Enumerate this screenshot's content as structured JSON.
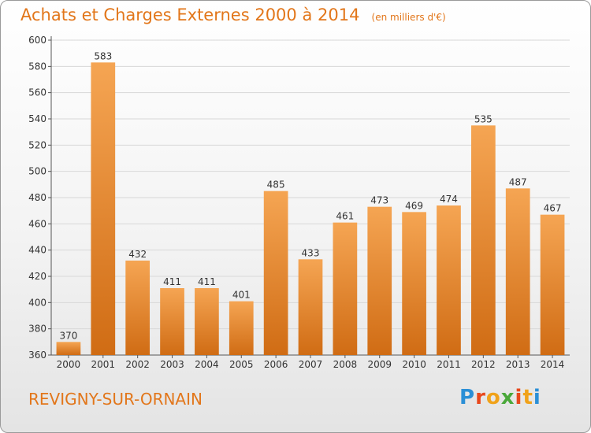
{
  "header": {
    "title": "Achats et Charges Externes 2000 à 2014",
    "unit": "(en milliers d'€)"
  },
  "footer": {
    "commune": "REVIGNY-SUR-ORNAIN",
    "logo_letters": [
      "P",
      "r",
      "o",
      "x",
      "i",
      "t",
      "i"
    ],
    "logo_colors": [
      "#2b8fd6",
      "#e8481c",
      "#f0a21a",
      "#4aa83a",
      "#e8481c",
      "#f0a21a",
      "#2b8fd6"
    ]
  },
  "colors": {
    "bar_light": "#f5a553",
    "bar_dark": "#d06c14",
    "title": "#e2761a",
    "grid": "#d8d8d8"
  },
  "chart_data": {
    "type": "bar",
    "categories": [
      "2000",
      "2001",
      "2002",
      "2003",
      "2004",
      "2005",
      "2006",
      "2007",
      "2008",
      "2009",
      "2010",
      "2011",
      "2012",
      "2013",
      "2014"
    ],
    "values": [
      370,
      583,
      432,
      411,
      411,
      401,
      485,
      433,
      461,
      473,
      469,
      474,
      535,
      487,
      467
    ],
    "yticks": [
      360,
      380,
      400,
      420,
      440,
      460,
      480,
      500,
      520,
      540,
      560,
      580,
      600
    ],
    "ylim": [
      360,
      600
    ],
    "grid": true,
    "title": "Achats et Charges Externes 2000 à 2014",
    "xlabel": "",
    "ylabel": ""
  }
}
